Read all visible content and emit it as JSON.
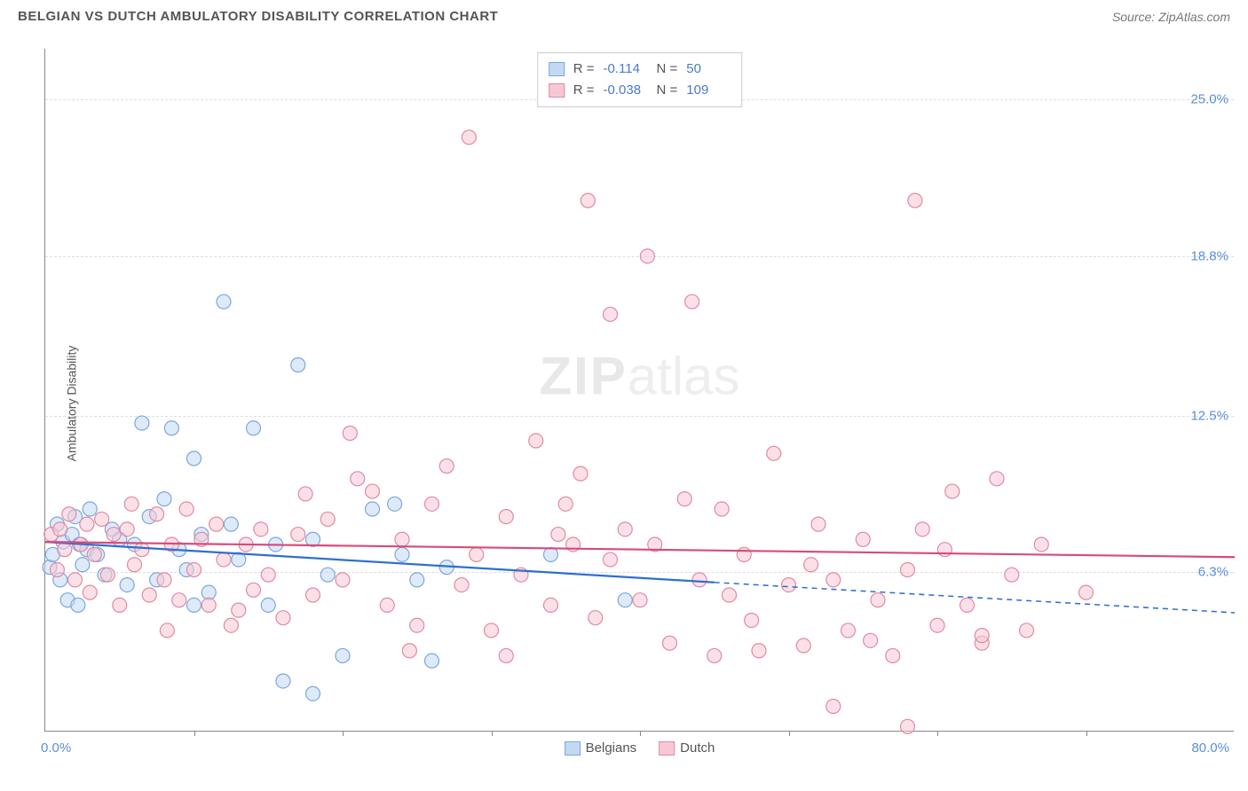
{
  "header": {
    "title": "BELGIAN VS DUTCH AMBULATORY DISABILITY CORRELATION CHART",
    "source": "Source: ZipAtlas.com"
  },
  "chart": {
    "type": "scatter",
    "y_axis_label": "Ambulatory Disability",
    "xlim": [
      0,
      80
    ],
    "ylim": [
      0,
      27
    ],
    "x_min_label": "0.0%",
    "x_max_label": "80.0%",
    "x_ticks": [
      10,
      20,
      30,
      40,
      50,
      60,
      70
    ],
    "y_gridlines": [
      6.3,
      12.5,
      18.8,
      25.0
    ],
    "y_tick_labels": [
      "6.3%",
      "12.5%",
      "18.8%",
      "25.0%"
    ],
    "grid_color": "#dddddd",
    "axis_color": "#888888",
    "tick_label_color": "#5b8fd6",
    "background_color": "#ffffff",
    "marker_radius": 8,
    "marker_stroke_width": 1.2,
    "watermark": {
      "zip": "ZIP",
      "atlas": "atlas"
    },
    "series": [
      {
        "name": "Belgians",
        "fill_color": "#c3d9f2",
        "stroke_color": "#7aa8de",
        "fill_opacity": 0.55,
        "correlation_R": "-0.114",
        "correlation_N": "50",
        "trend": {
          "solid": {
            "x1": 0,
            "y1": 7.5,
            "x2": 45,
            "y2": 5.9
          },
          "dashed": {
            "x1": 45,
            "y1": 5.9,
            "x2": 80,
            "y2": 4.7
          },
          "color": "#2f6fd0",
          "width": 2.2
        },
        "points": [
          [
            0.3,
            6.5
          ],
          [
            0.5,
            7.0
          ],
          [
            0.8,
            8.2
          ],
          [
            1.0,
            6.0
          ],
          [
            1.2,
            7.5
          ],
          [
            1.5,
            5.2
          ],
          [
            1.8,
            7.8
          ],
          [
            2.0,
            8.5
          ],
          [
            2.2,
            5.0
          ],
          [
            2.3,
            7.4
          ],
          [
            2.5,
            6.6
          ],
          [
            2.8,
            7.2
          ],
          [
            3.0,
            8.8
          ],
          [
            3.5,
            7.0
          ],
          [
            4.0,
            6.2
          ],
          [
            4.5,
            8.0
          ],
          [
            5.0,
            7.6
          ],
          [
            5.5,
            5.8
          ],
          [
            6.0,
            7.4
          ],
          [
            6.5,
            12.2
          ],
          [
            7.0,
            8.5
          ],
          [
            7.5,
            6.0
          ],
          [
            8.0,
            9.2
          ],
          [
            8.5,
            12.0
          ],
          [
            9.0,
            7.2
          ],
          [
            9.5,
            6.4
          ],
          [
            10.0,
            5.0
          ],
          [
            10.0,
            10.8
          ],
          [
            10.5,
            7.8
          ],
          [
            11.0,
            5.5
          ],
          [
            12.0,
            17.0
          ],
          [
            12.5,
            8.2
          ],
          [
            13.0,
            6.8
          ],
          [
            14.0,
            12.0
          ],
          [
            15.0,
            5.0
          ],
          [
            15.5,
            7.4
          ],
          [
            16.0,
            2.0
          ],
          [
            17.0,
            14.5
          ],
          [
            18.0,
            7.6
          ],
          [
            18.0,
            1.5
          ],
          [
            19.0,
            6.2
          ],
          [
            20.0,
            3.0
          ],
          [
            22.0,
            8.8
          ],
          [
            23.5,
            9.0
          ],
          [
            24.0,
            7.0
          ],
          [
            25.0,
            6.0
          ],
          [
            26.0,
            2.8
          ],
          [
            27.0,
            6.5
          ],
          [
            34.0,
            7.0
          ],
          [
            39.0,
            5.2
          ]
        ]
      },
      {
        "name": "Dutch",
        "fill_color": "#f7c8d4",
        "stroke_color": "#e08aa3",
        "fill_opacity": 0.55,
        "correlation_R": "-0.038",
        "correlation_N": "109",
        "trend": {
          "solid": {
            "x1": 0,
            "y1": 7.5,
            "x2": 80,
            "y2": 6.9
          },
          "dashed": null,
          "color": "#d84a7a",
          "width": 2.2
        },
        "points": [
          [
            0.4,
            7.8
          ],
          [
            0.8,
            6.4
          ],
          [
            1.0,
            8.0
          ],
          [
            1.3,
            7.2
          ],
          [
            1.6,
            8.6
          ],
          [
            2.0,
            6.0
          ],
          [
            2.4,
            7.4
          ],
          [
            2.8,
            8.2
          ],
          [
            3.0,
            5.5
          ],
          [
            3.3,
            7.0
          ],
          [
            3.8,
            8.4
          ],
          [
            4.2,
            6.2
          ],
          [
            4.6,
            7.8
          ],
          [
            5.0,
            5.0
          ],
          [
            5.5,
            8.0
          ],
          [
            6.0,
            6.6
          ],
          [
            6.5,
            7.2
          ],
          [
            7.0,
            5.4
          ],
          [
            7.5,
            8.6
          ],
          [
            8.0,
            6.0
          ],
          [
            8.5,
            7.4
          ],
          [
            9.0,
            5.2
          ],
          [
            9.5,
            8.8
          ],
          [
            10.0,
            6.4
          ],
          [
            10.5,
            7.6
          ],
          [
            11.0,
            5.0
          ],
          [
            11.5,
            8.2
          ],
          [
            12.0,
            6.8
          ],
          [
            13.0,
            4.8
          ],
          [
            13.5,
            7.4
          ],
          [
            14.0,
            5.6
          ],
          [
            14.5,
            8.0
          ],
          [
            15.0,
            6.2
          ],
          [
            16.0,
            4.5
          ],
          [
            17.0,
            7.8
          ],
          [
            18.0,
            5.4
          ],
          [
            19.0,
            8.4
          ],
          [
            20.0,
            6.0
          ],
          [
            21.0,
            10.0
          ],
          [
            22.0,
            9.5
          ],
          [
            23.0,
            5.0
          ],
          [
            24.0,
            7.6
          ],
          [
            25.0,
            4.2
          ],
          [
            26.0,
            9.0
          ],
          [
            27.0,
            10.5
          ],
          [
            28.0,
            5.8
          ],
          [
            28.5,
            23.5
          ],
          [
            29.0,
            7.0
          ],
          [
            30.0,
            4.0
          ],
          [
            31.0,
            8.5
          ],
          [
            32.0,
            6.2
          ],
          [
            33.0,
            11.5
          ],
          [
            34.0,
            5.0
          ],
          [
            35.0,
            9.0
          ],
          [
            35.5,
            7.4
          ],
          [
            36.0,
            10.2
          ],
          [
            36.5,
            21.0
          ],
          [
            37.0,
            4.5
          ],
          [
            38.0,
            6.8
          ],
          [
            39.0,
            8.0
          ],
          [
            40.0,
            5.2
          ],
          [
            40.5,
            18.8
          ],
          [
            41.0,
            7.4
          ],
          [
            42.0,
            3.5
          ],
          [
            43.0,
            9.2
          ],
          [
            43.5,
            17.0
          ],
          [
            44.0,
            6.0
          ],
          [
            45.0,
            3.0
          ],
          [
            45.5,
            8.8
          ],
          [
            46.0,
            5.4
          ],
          [
            47.0,
            7.0
          ],
          [
            48.0,
            3.2
          ],
          [
            49.0,
            11.0
          ],
          [
            50.0,
            5.8
          ],
          [
            51.0,
            3.4
          ],
          [
            52.0,
            8.2
          ],
          [
            53.0,
            6.0
          ],
          [
            54.0,
            4.0
          ],
          [
            55.0,
            7.6
          ],
          [
            56.0,
            5.2
          ],
          [
            57.0,
            3.0
          ],
          [
            58.0,
            6.4
          ],
          [
            58.5,
            21.0
          ],
          [
            59.0,
            8.0
          ],
          [
            60.0,
            4.2
          ],
          [
            61.0,
            9.5
          ],
          [
            62.0,
            5.0
          ],
          [
            63.0,
            3.5
          ],
          [
            64.0,
            10.0
          ],
          [
            65.0,
            6.2
          ],
          [
            66.0,
            4.0
          ],
          [
            67.0,
            7.4
          ],
          [
            53.0,
            1.0
          ],
          [
            58.0,
            0.2
          ],
          [
            63.0,
            3.8
          ],
          [
            70.0,
            5.5
          ],
          [
            38.0,
            16.5
          ],
          [
            31.0,
            3.0
          ],
          [
            34.5,
            7.8
          ],
          [
            24.5,
            3.2
          ],
          [
            51.5,
            6.6
          ],
          [
            47.5,
            4.4
          ],
          [
            55.5,
            3.6
          ],
          [
            60.5,
            7.2
          ],
          [
            20.5,
            11.8
          ],
          [
            17.5,
            9.4
          ],
          [
            12.5,
            4.2
          ],
          [
            8.2,
            4.0
          ],
          [
            5.8,
            9.0
          ]
        ]
      }
    ],
    "bottom_legend": [
      {
        "label": "Belgians",
        "fill": "#c3d9f2",
        "stroke": "#7aa8de"
      },
      {
        "label": "Dutch",
        "fill": "#f7c8d4",
        "stroke": "#e08aa3"
      }
    ]
  }
}
